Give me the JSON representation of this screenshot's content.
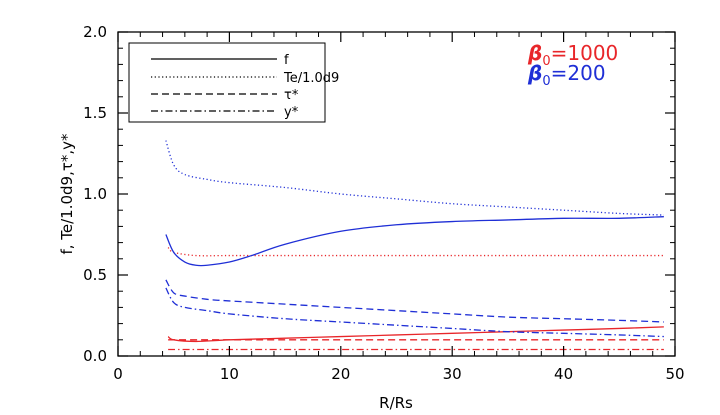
{
  "chart_data": {
    "type": "line",
    "xlabel": "R/Rs",
    "ylabel": "f, Te/1.0d9,τ*,y*",
    "xlim": [
      0,
      50
    ],
    "ylim": [
      0,
      2.0
    ],
    "xticks": [
      "0",
      "10",
      "20",
      "30",
      "40",
      "50"
    ],
    "yticks": [
      "0.0",
      "0.5",
      "1.0",
      "1.5",
      "2.0"
    ],
    "legend": {
      "placement": "top-left",
      "entries": [
        {
          "label": "f",
          "style": "solid"
        },
        {
          "label": "Te/1.0d9",
          "style": "dotted"
        },
        {
          "label": "τ*",
          "style": "dashed"
        },
        {
          "label": "y*",
          "style": "dashdot"
        }
      ]
    },
    "annotations": [
      {
        "text": "β",
        "sub": "0",
        "value": "=1000",
        "color": "#e8262a"
      },
      {
        "text": "β",
        "sub": "0",
        "value": "=200",
        "color": "#1f2fd6"
      }
    ],
    "series": [
      {
        "quantity": "f",
        "group": "β0=1000",
        "color": "#e8262a",
        "style": "solid",
        "x": [
          4.5,
          5,
          7,
          10,
          15,
          20,
          25,
          30,
          35,
          40,
          45,
          49
        ],
        "y": [
          0.12,
          0.1,
          0.09,
          0.1,
          0.11,
          0.12,
          0.13,
          0.14,
          0.15,
          0.16,
          0.17,
          0.18
        ]
      },
      {
        "quantity": "Te/1.0d9",
        "group": "β0=1000",
        "color": "#e8262a",
        "style": "dotted",
        "x": [
          4.5,
          5,
          7,
          10,
          15,
          20,
          25,
          30,
          35,
          40,
          45,
          49
        ],
        "y": [
          0.67,
          0.64,
          0.62,
          0.62,
          0.62,
          0.62,
          0.62,
          0.62,
          0.62,
          0.62,
          0.62,
          0.62
        ]
      },
      {
        "quantity": "τ*",
        "group": "β0=1000",
        "color": "#e8262a",
        "style": "dashed",
        "x": [
          4.5,
          5,
          7,
          10,
          15,
          20,
          25,
          30,
          35,
          40,
          45,
          49
        ],
        "y": [
          0.1,
          0.1,
          0.1,
          0.1,
          0.1,
          0.1,
          0.1,
          0.1,
          0.1,
          0.1,
          0.1,
          0.1
        ]
      },
      {
        "quantity": "y*",
        "group": "β0=1000",
        "color": "#e8262a",
        "style": "dashdot",
        "x": [
          4.5,
          5,
          7,
          10,
          15,
          20,
          25,
          30,
          35,
          40,
          45,
          49
        ],
        "y": [
          0.04,
          0.04,
          0.04,
          0.04,
          0.04,
          0.04,
          0.04,
          0.04,
          0.04,
          0.04,
          0.04,
          0.04
        ]
      },
      {
        "quantity": "f",
        "group": "β0=200",
        "color": "#1f2fd6",
        "style": "solid",
        "x": [
          4.3,
          5,
          6,
          7,
          8,
          10,
          12,
          15,
          20,
          25,
          30,
          35,
          40,
          45,
          49
        ],
        "y": [
          0.75,
          0.64,
          0.58,
          0.56,
          0.56,
          0.58,
          0.62,
          0.69,
          0.77,
          0.81,
          0.83,
          0.84,
          0.85,
          0.85,
          0.86
        ]
      },
      {
        "quantity": "Te/1.0d9",
        "group": "β0=200",
        "color": "#1f2fd6",
        "style": "dotted",
        "x": [
          4.3,
          5,
          6,
          8,
          10,
          15,
          20,
          25,
          30,
          35,
          40,
          45,
          49
        ],
        "y": [
          1.33,
          1.18,
          1.12,
          1.09,
          1.07,
          1.04,
          1.0,
          0.97,
          0.94,
          0.92,
          0.9,
          0.88,
          0.87
        ]
      },
      {
        "quantity": "τ*",
        "group": "β0=200",
        "color": "#1f2fd6",
        "style": "dashed",
        "x": [
          4.3,
          5,
          6,
          8,
          10,
          15,
          20,
          25,
          30,
          35,
          40,
          45,
          49
        ],
        "y": [
          0.47,
          0.39,
          0.37,
          0.35,
          0.34,
          0.32,
          0.3,
          0.28,
          0.26,
          0.24,
          0.23,
          0.22,
          0.21
        ]
      },
      {
        "quantity": "y*",
        "group": "β0=200",
        "color": "#1f2fd6",
        "style": "dashdot",
        "x": [
          4.3,
          5,
          6,
          8,
          10,
          15,
          20,
          25,
          30,
          35,
          40,
          45,
          49
        ],
        "y": [
          0.42,
          0.33,
          0.3,
          0.28,
          0.26,
          0.23,
          0.21,
          0.19,
          0.17,
          0.15,
          0.14,
          0.13,
          0.12
        ]
      }
    ]
  }
}
